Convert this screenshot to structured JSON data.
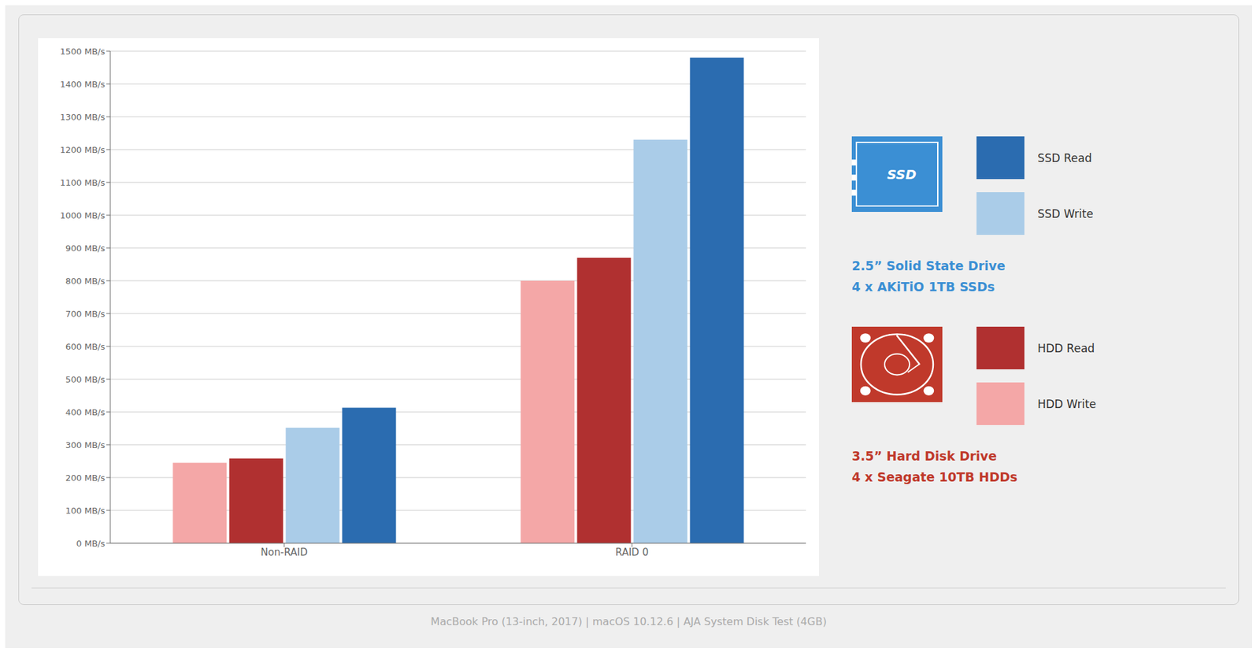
{
  "chart_data": {
    "type": "bar",
    "categories": [
      "Non-RAID",
      "RAID 0"
    ],
    "series": [
      {
        "name": "HDD Write",
        "color": "#f4a7a7",
        "values": [
          245,
          800
        ]
      },
      {
        "name": "HDD Read",
        "color": "#b03030",
        "values": [
          258,
          870
        ]
      },
      {
        "name": "SSD Write",
        "color": "#aacce8",
        "values": [
          352,
          1230
        ]
      },
      {
        "name": "SSD Read",
        "color": "#2b6cb0",
        "values": [
          413,
          1480
        ]
      }
    ],
    "ylim": [
      0,
      1500
    ],
    "yticks": [
      {
        "value": 0,
        "label": "0 MB/s"
      },
      {
        "value": 100,
        "label": "100 MB/s"
      },
      {
        "value": 200,
        "label": "200 MB/s"
      },
      {
        "value": 300,
        "label": "300 MB/s"
      },
      {
        "value": 400,
        "label": "400 MB/s"
      },
      {
        "value": 500,
        "label": "500 MB/s"
      },
      {
        "value": 600,
        "label": "600 MB/s"
      },
      {
        "value": 700,
        "label": "700 MB/s"
      },
      {
        "value": 800,
        "label": "800 MB/s"
      },
      {
        "value": 900,
        "label": "900 MB/s"
      },
      {
        "value": 1000,
        "label": "1000 MB/s"
      },
      {
        "value": 1100,
        "label": "1100 MB/s"
      },
      {
        "value": 1200,
        "label": "1200 MB/s"
      },
      {
        "value": 1300,
        "label": "1300 MB/s"
      },
      {
        "value": 1400,
        "label": "1400 MB/s"
      },
      {
        "value": 1500,
        "label": "1500 MB/s"
      }
    ],
    "grid": true,
    "legend": "right",
    "annotations": [
      {
        "text": "SSD",
        "color": "#3b8fd4"
      },
      {
        "text": "2.5” Solid State Drive",
        "color": "#3b8fd4"
      },
      {
        "text": "4 x AKiTiO 1TB SSDs",
        "color": "#3b8fd4"
      },
      {
        "text": "3.5” Hard Disk Drive",
        "color": "#c0392b"
      },
      {
        "text": "4 x Seagate 10TB HDDs",
        "color": "#c0392b"
      },
      {
        "text": "MacBook Pro (13-inch, 2017)  |  macOS 10.12.6  |  AJA System Disk Test (4GB)",
        "color": "#aaaaaa"
      }
    ]
  }
}
